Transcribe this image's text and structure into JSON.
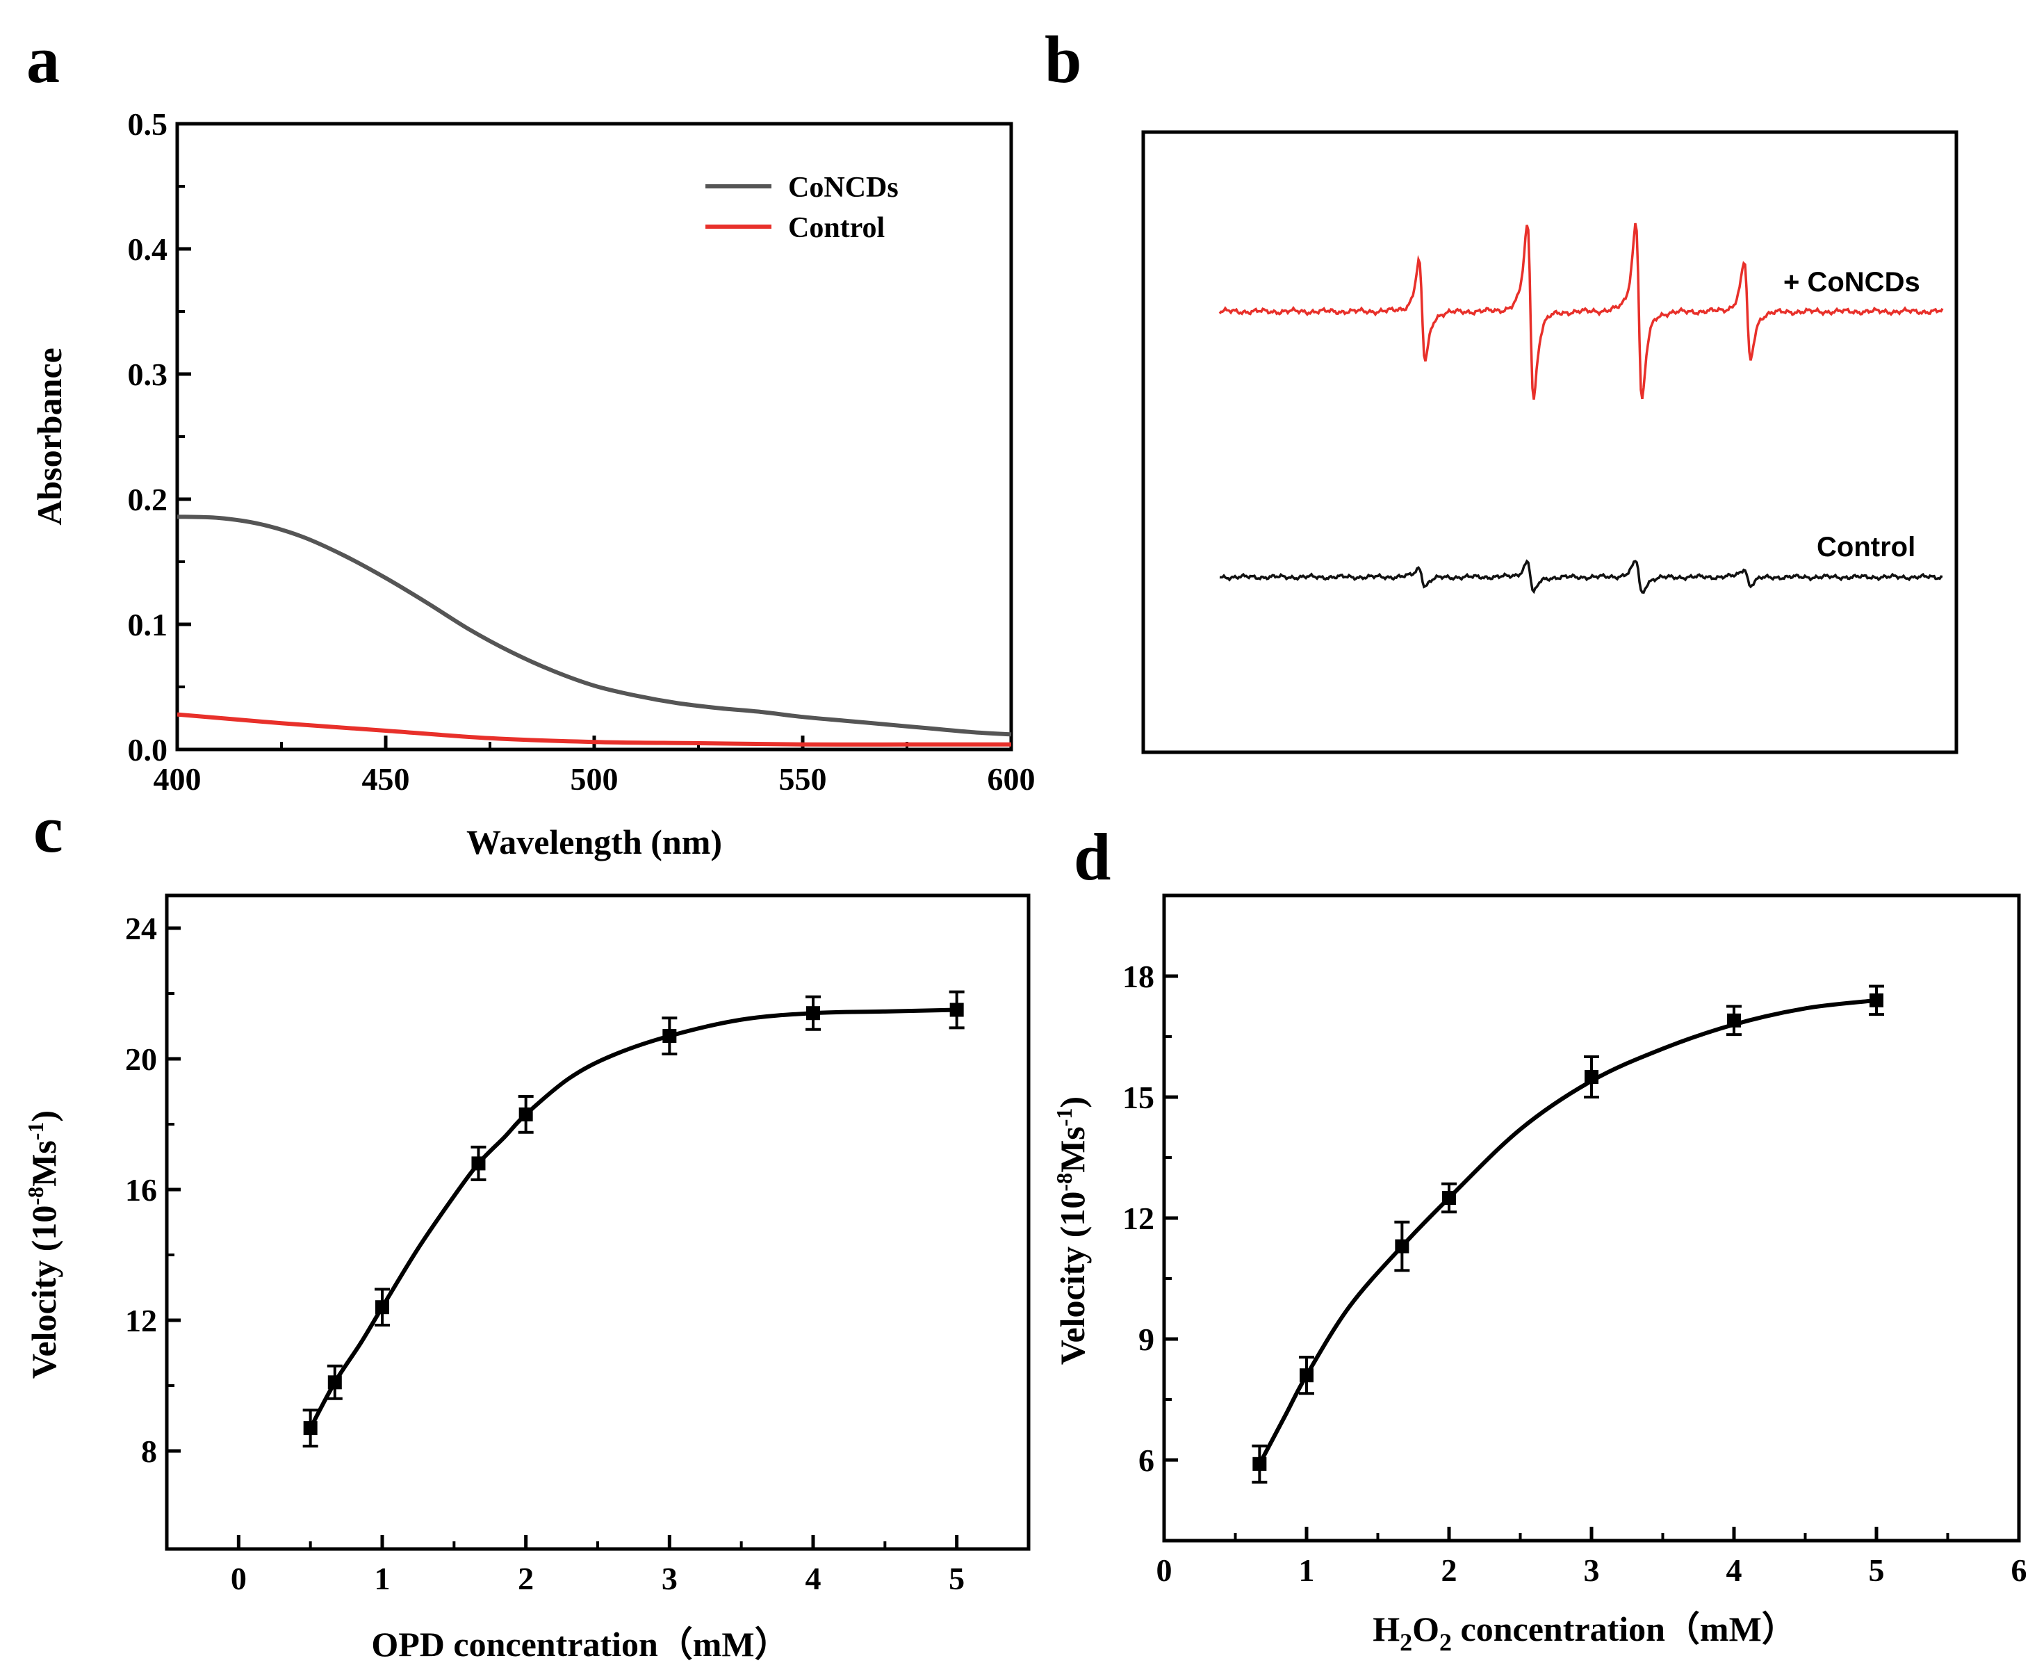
{
  "panel_labels": {
    "a": "a",
    "b": "b",
    "c": "c",
    "d": "d"
  },
  "colors": {
    "concds": "#555555",
    "control": "#e8302a",
    "epr_top": "#e8302a",
    "epr_bottom": "#111111",
    "fit": "#000000"
  },
  "chart_data": [
    {
      "panel": "a",
      "type": "line",
      "title": "",
      "xlabel": "Wavelength (nm)",
      "ylabel": "Absorbance",
      "xlim": [
        400,
        600
      ],
      "ylim": [
        0,
        0.5
      ],
      "xticks": [
        400,
        450,
        500,
        550,
        600
      ],
      "xtick_labels": [
        "400",
        "450",
        "500",
        "550",
        "600"
      ],
      "yticks": [
        0,
        0.1,
        0.2,
        0.3,
        0.4,
        0.5
      ],
      "ytick_labels": [
        "0.0",
        "0.1",
        "0.2",
        "0.3",
        "0.4",
        "0.5"
      ],
      "legend": {
        "position": "top-right",
        "entries": [
          "CoNCDs",
          "Control"
        ]
      },
      "series": [
        {
          "name": "CoNCDs",
          "x": [
            400,
            410,
            420,
            430,
            440,
            450,
            460,
            470,
            480,
            490,
            500,
            510,
            520,
            530,
            540,
            550,
            560,
            570,
            580,
            590,
            600
          ],
          "y": [
            0.186,
            0.185,
            0.18,
            0.17,
            0.155,
            0.137,
            0.117,
            0.096,
            0.078,
            0.063,
            0.051,
            0.043,
            0.037,
            0.033,
            0.03,
            0.026,
            0.023,
            0.02,
            0.017,
            0.014,
            0.012
          ]
        },
        {
          "name": "Control",
          "x": [
            400,
            425,
            450,
            475,
            500,
            525,
            550,
            575,
            600
          ],
          "y": [
            0.028,
            0.021,
            0.015,
            0.009,
            0.006,
            0.005,
            0.004,
            0.004,
            0.004
          ]
        }
      ]
    },
    {
      "panel": "b",
      "type": "line",
      "title": "",
      "labels": {
        "top": "+ CoNCDs",
        "bottom": "Control"
      },
      "series": [
        {
          "name": "+ CoNCDs",
          "line_positions": [
            0.28,
            0.43,
            0.58,
            0.73
          ],
          "amplitudes": [
            1.0,
            1.75,
            1.8,
            1.0
          ]
        },
        {
          "name": "Control",
          "line_positions": [
            0.28,
            0.43,
            0.58,
            0.73
          ],
          "amplitudes": [
            0.18,
            0.32,
            0.33,
            0.17
          ]
        }
      ]
    },
    {
      "panel": "c",
      "type": "scatter",
      "title": "",
      "xlabel": "OPD concentration（mM）",
      "ylabel_main": "Velocity (10",
      "ylabel_exp1": "-8",
      "ylabel_mid": "Ms",
      "ylabel_exp2": "-1",
      "ylabel_end": ")",
      "xlim": [
        -0.5,
        5.5
      ],
      "ylim": [
        5,
        25
      ],
      "xticks": [
        0,
        1,
        2,
        3,
        4,
        5
      ],
      "xtick_labels": [
        "0",
        "1",
        "2",
        "3",
        "4",
        "5"
      ],
      "yticks": [
        8,
        12,
        16,
        20,
        24
      ],
      "ytick_labels": [
        "8",
        "12",
        "16",
        "20",
        "24"
      ],
      "points": [
        {
          "x": 0.5,
          "y": 8.7,
          "err": 0.55
        },
        {
          "x": 0.67,
          "y": 10.1,
          "err": 0.5
        },
        {
          "x": 1.0,
          "y": 12.4,
          "err": 0.55
        },
        {
          "x": 1.67,
          "y": 16.8,
          "err": 0.5
        },
        {
          "x": 2.0,
          "y": 18.3,
          "err": 0.55
        },
        {
          "x": 3.0,
          "y": 20.7,
          "err": 0.55
        },
        {
          "x": 4.0,
          "y": 21.4,
          "err": 0.5
        },
        {
          "x": 5.0,
          "y": 21.5,
          "err": 0.55
        }
      ],
      "fit": {
        "x": [
          0.5,
          0.67,
          0.85,
          1.0,
          1.25,
          1.5,
          1.67,
          1.85,
          2.0,
          2.3,
          2.6,
          3.0,
          3.5,
          4.0,
          4.5,
          5.0
        ],
        "y": [
          8.7,
          10.1,
          11.3,
          12.4,
          14.2,
          15.8,
          16.8,
          17.6,
          18.3,
          19.4,
          20.1,
          20.7,
          21.2,
          21.4,
          21.45,
          21.5
        ]
      }
    },
    {
      "panel": "d",
      "type": "scatter",
      "title": "",
      "xlabel_pre": "H",
      "xlabel_sub1": "2",
      "xlabel_mid": "O",
      "xlabel_sub2": "2",
      "xlabel_post": " concentration（mM）",
      "ylabel_main": "Velocity (10",
      "ylabel_exp1": "-8",
      "ylabel_mid": "Ms",
      "ylabel_exp2": "-1",
      "ylabel_end": ")",
      "xlim": [
        0,
        6
      ],
      "ylim": [
        4,
        20
      ],
      "xticks": [
        0,
        1,
        2,
        3,
        4,
        5,
        6
      ],
      "xtick_labels": [
        "0",
        "1",
        "2",
        "3",
        "4",
        "5",
        "6"
      ],
      "yticks": [
        6,
        9,
        12,
        15,
        18
      ],
      "ytick_labels": [
        "6",
        "9",
        "12",
        "15",
        "18"
      ],
      "points": [
        {
          "x": 0.67,
          "y": 5.9,
          "err": 0.45
        },
        {
          "x": 1.0,
          "y": 8.1,
          "err": 0.45
        },
        {
          "x": 1.67,
          "y": 11.3,
          "err": 0.6
        },
        {
          "x": 2.0,
          "y": 12.5,
          "err": 0.35
        },
        {
          "x": 3.0,
          "y": 15.5,
          "err": 0.5
        },
        {
          "x": 4.0,
          "y": 16.9,
          "err": 0.35
        },
        {
          "x": 5.0,
          "y": 17.4,
          "err": 0.35
        }
      ],
      "fit": {
        "x": [
          0.67,
          0.85,
          1.0,
          1.3,
          1.67,
          2.0,
          2.5,
          3.0,
          3.5,
          4.0,
          4.5,
          5.0
        ],
        "y": [
          5.9,
          7.1,
          8.1,
          9.8,
          11.3,
          12.5,
          14.2,
          15.4,
          16.2,
          16.8,
          17.2,
          17.4
        ]
      }
    }
  ]
}
